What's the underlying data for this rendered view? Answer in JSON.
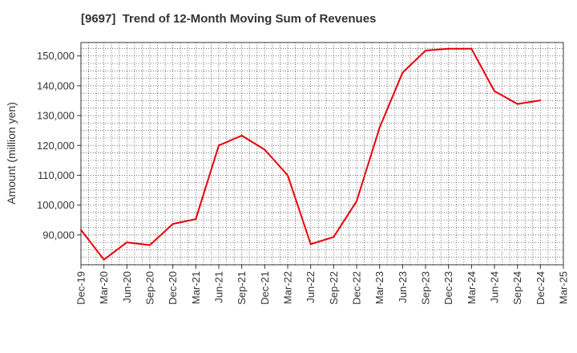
{
  "chart_data": {
    "type": "line",
    "title": "[9697]  Trend of 12-Month Moving Sum of Revenues",
    "xlabel": "",
    "ylabel": "Amount (million yen)",
    "x_tick_labels": [
      "Dec-19",
      "Mar-20",
      "Jun-20",
      "Sep-20",
      "Dec-20",
      "Mar-21",
      "Jun-21",
      "Sep-21",
      "Dec-21",
      "Mar-22",
      "Jun-22",
      "Sep-22",
      "Dec-22",
      "Mar-23",
      "Jun-23",
      "Sep-23",
      "Dec-23",
      "Mar-24",
      "Jun-24",
      "Sep-24",
      "Dec-24",
      "Mar-25"
    ],
    "y_ticks": [
      90000,
      100000,
      110000,
      120000,
      130000,
      140000,
      150000
    ],
    "y_tick_labels": [
      "90,000",
      "100,000",
      "110,000",
      "120,000",
      "130,000",
      "140,000",
      "150,000"
    ],
    "ylim": [
      80000,
      154500
    ],
    "grid": true,
    "series": [
      {
        "color": "#e8000b",
        "x": [
          "Dec-19",
          "Mar-20",
          "Jun-20",
          "Sep-20",
          "Dec-20",
          "Mar-21",
          "Jun-21",
          "Sep-21",
          "Dec-21",
          "Mar-22",
          "Jun-22",
          "Sep-22",
          "Dec-22",
          "Mar-23",
          "Jun-23",
          "Sep-23",
          "Dec-23",
          "Mar-24",
          "Jun-24",
          "Sep-24",
          "Dec-24"
        ],
        "values": [
          91700,
          81700,
          87500,
          86600,
          93700,
          95300,
          120000,
          123300,
          118600,
          110000,
          86900,
          89300,
          101300,
          126000,
          144400,
          151800,
          152400,
          152400,
          138200,
          133900,
          135100
        ]
      }
    ]
  }
}
